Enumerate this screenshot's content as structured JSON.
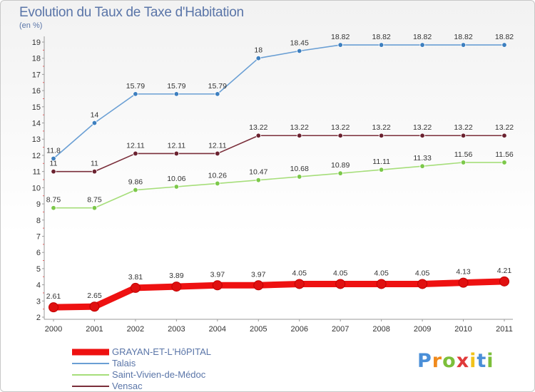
{
  "chart_data": {
    "type": "line",
    "title": "Evolution du Taux de Taxe d'Habitation",
    "ylabel": "(en %)",
    "x": [
      "2000",
      "2001",
      "2002",
      "2003",
      "2004",
      "2005",
      "2006",
      "2007",
      "2008",
      "2009",
      "2010",
      "2011"
    ],
    "ylim": [
      2,
      19
    ],
    "yticks": [
      "2",
      "3",
      "4",
      "5",
      "6",
      "7",
      "8",
      "9",
      "10",
      "11",
      "12",
      "13",
      "14",
      "15",
      "16",
      "17",
      "18",
      "19"
    ],
    "series": [
      {
        "name": "Talais",
        "color": "#6a9fd4",
        "marker": "#3d7fbf",
        "values": [
          11.8,
          14,
          15.79,
          15.79,
          15.79,
          18,
          18.45,
          18.82,
          18.82,
          18.82,
          18.82,
          18.82
        ],
        "labels": [
          "11.8",
          "14",
          "15.79",
          "15.79",
          "15.79",
          "18",
          "18.45",
          "18.82",
          "18.82",
          "18.82",
          "18.82",
          "18.82"
        ]
      },
      {
        "name": "Vensac",
        "color": "#7a2e3a",
        "marker": "#6b2230",
        "values": [
          11,
          11,
          12.11,
          12.11,
          12.11,
          13.22,
          13.22,
          13.22,
          13.22,
          13.22,
          13.22,
          13.22
        ],
        "labels": [
          "11",
          "11",
          "12.11",
          "12.11",
          "12.11",
          "13.22",
          "13.22",
          "13.22",
          "13.22",
          "13.22",
          "13.22",
          "13.22"
        ]
      },
      {
        "name": "Saint-Vivien-de-Médoc",
        "color": "#a6de7a",
        "marker": "#7cc84a",
        "values": [
          8.75,
          8.75,
          9.86,
          10.06,
          10.26,
          10.47,
          10.68,
          10.89,
          11.11,
          11.33,
          11.56,
          11.56
        ],
        "labels": [
          "8.75",
          "8.75",
          "9.86",
          "10.06",
          "10.26",
          "10.47",
          "10.68",
          "10.89",
          "11.11",
          "11.33",
          "11.56",
          "11.56"
        ]
      },
      {
        "name": "GRAYAN-ET-L'HôPITAL",
        "color": "#ee1111",
        "marker": "#e01010",
        "values": [
          2.61,
          2.65,
          3.81,
          3.89,
          3.97,
          3.97,
          4.05,
          4.05,
          4.05,
          4.05,
          4.13,
          4.21
        ],
        "labels": [
          "2.61",
          "2.65",
          "3.81",
          "3.89",
          "3.97",
          "3.97",
          "4.05",
          "4.05",
          "4.05",
          "4.05",
          "4.13",
          "4.21"
        ]
      }
    ],
    "legend": [
      {
        "name": "GRAYAN-ET-L'HôPITAL",
        "color": "#ee1111",
        "thick": true
      },
      {
        "name": "Talais",
        "color": "#6a9fd4",
        "thick": false
      },
      {
        "name": "Saint-Vivien-de-Médoc",
        "color": "#a6de7a",
        "thick": false
      },
      {
        "name": "Vensac",
        "color": "#7a2e3a",
        "thick": false
      }
    ],
    "legend_position": "bottom-left",
    "grid": false
  },
  "logo": {
    "letters": [
      "P",
      "r",
      "o",
      "x",
      "i",
      "t",
      "i"
    ],
    "colors": [
      "#4a8fd8",
      "#f08a1c",
      "#7cbf3a",
      "#e03a3a",
      "#f2c21a",
      "#4a8fd8",
      "#7cbf3a"
    ]
  }
}
